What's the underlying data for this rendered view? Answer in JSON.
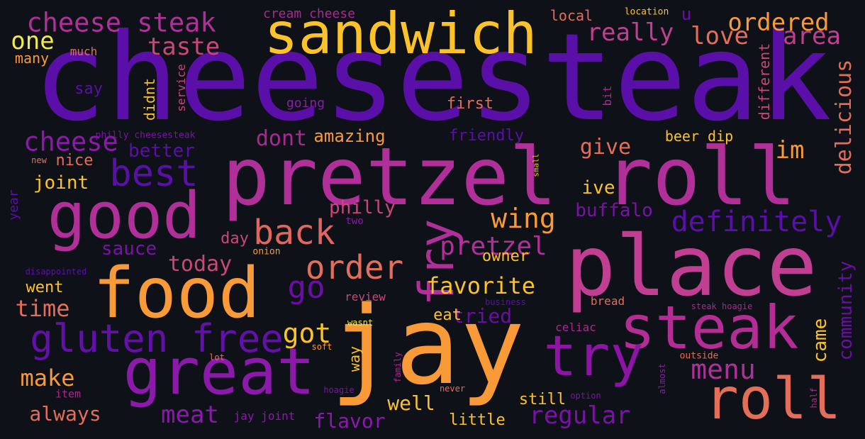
{
  "palette": {
    "background": "#0e1117",
    "deep_purple": "#5a0fa8",
    "purple": "#8b1aab",
    "magenta": "#c13f92",
    "pink": "#cb4778",
    "salmon": "#e36e5a",
    "orange": "#f79a3a",
    "yellow": "#fcc229",
    "pale_yellow": "#f2e94a"
  },
  "words": [
    {
      "text": "cheesesteak",
      "color": "#5a0fa8"
    },
    {
      "text": "pretzel roll",
      "color": "#b02f98"
    },
    {
      "text": "place",
      "color": "#c13f92"
    },
    {
      "text": "jay",
      "color": "#f99a39"
    },
    {
      "text": "food",
      "color": "#f99a39"
    },
    {
      "text": "good",
      "color": "#b02f98"
    },
    {
      "text": "great",
      "color": "#8b1aab"
    },
    {
      "text": "sandwich",
      "color": "#fcc229"
    },
    {
      "text": "steak",
      "color": "#b32d94"
    },
    {
      "text": "roll",
      "color": "#e36e5a"
    },
    {
      "text": "try",
      "color": "#8e14a6"
    },
    {
      "text": "fry",
      "color": "#b02f98"
    },
    {
      "text": "gluten free",
      "color": "#6210a8"
    },
    {
      "text": "best",
      "color": "#5a0fa8"
    },
    {
      "text": "back",
      "color": "#e0675f"
    },
    {
      "text": "order",
      "color": "#e36e5a"
    },
    {
      "text": "definitely",
      "color": "#5a0fa8"
    },
    {
      "text": "cheese steak",
      "color": "#b02f98"
    },
    {
      "text": "cheese",
      "color": "#8b1aab"
    },
    {
      "text": "taste",
      "color": "#cb4778"
    },
    {
      "text": "one",
      "color": "#f2e94a"
    },
    {
      "text": "really",
      "color": "#c13f92"
    },
    {
      "text": "ordered",
      "color": "#f99a39"
    },
    {
      "text": "love",
      "color": "#e36e5a"
    },
    {
      "text": "area",
      "color": "#c13f92"
    },
    {
      "text": "delicious",
      "color": "#e36e5a"
    },
    {
      "text": "go",
      "color": "#6a0ea6"
    },
    {
      "text": "got",
      "color": "#fcc229"
    },
    {
      "text": "menu",
      "color": "#b02f98"
    },
    {
      "text": "came",
      "color": "#fcc229"
    },
    {
      "text": "community",
      "color": "#6a0ea6"
    },
    {
      "text": "wing",
      "color": "#f99a39"
    },
    {
      "text": "pretzel",
      "color": "#b02f98"
    },
    {
      "text": "favorite",
      "color": "#fcc229"
    },
    {
      "text": "make",
      "color": "#f99a39"
    },
    {
      "text": "meat",
      "color": "#8b1aab"
    },
    {
      "text": "regular",
      "color": "#7a12a8"
    },
    {
      "text": "im",
      "color": "#f99a39"
    },
    {
      "text": "dont",
      "color": "#a9298e"
    },
    {
      "text": "give",
      "color": "#e36e5a"
    },
    {
      "text": "time",
      "color": "#e36e5a"
    },
    {
      "text": "today",
      "color": "#cb4778"
    },
    {
      "text": "always",
      "color": "#e36e5a"
    },
    {
      "text": "buffalo",
      "color": "#7a12a8"
    },
    {
      "text": "philly",
      "color": "#cb4778"
    },
    {
      "text": "sauce",
      "color": "#7a12a8"
    },
    {
      "text": "well",
      "color": "#fcc229"
    },
    {
      "text": "flavor",
      "color": "#8b1aab"
    },
    {
      "text": "better",
      "color": "#5a0fa8"
    },
    {
      "text": "joint",
      "color": "#fcc229"
    },
    {
      "text": "amazing",
      "color": "#f99a39"
    },
    {
      "text": "ive",
      "color": "#fcc229"
    },
    {
      "text": "tried",
      "color": "#6a0ea6"
    },
    {
      "text": "owner",
      "color": "#fcc229"
    },
    {
      "text": "eat",
      "color": "#fcc229"
    },
    {
      "text": "little",
      "color": "#fcc229"
    },
    {
      "text": "still",
      "color": "#fcc229"
    },
    {
      "text": "day",
      "color": "#cb4778"
    },
    {
      "text": "went",
      "color": "#fcc229"
    },
    {
      "text": "first",
      "color": "#e36e5a"
    },
    {
      "text": "friendly",
      "color": "#5a0fa8"
    },
    {
      "text": "beer dip",
      "color": "#fcc229"
    },
    {
      "text": "didnt",
      "color": "#fcc229"
    },
    {
      "text": "different",
      "color": "#cb4778"
    },
    {
      "text": "say",
      "color": "#5a0fa8"
    },
    {
      "text": "nice",
      "color": "#e36e5a"
    },
    {
      "text": "year",
      "color": "#5a0fa8"
    },
    {
      "text": "way",
      "color": "#fcc229"
    },
    {
      "text": "many",
      "color": "#f99a39"
    },
    {
      "text": "much",
      "color": "#e36e5a"
    },
    {
      "text": "cream cheese",
      "color": "#a9298e"
    },
    {
      "text": "local",
      "color": "#e36e5a"
    },
    {
      "text": "location",
      "color": "#fcc229"
    },
    {
      "text": "u",
      "color": "#6a0ea6"
    },
    {
      "text": "service",
      "color": "#cb4778"
    },
    {
      "text": "going",
      "color": "#8b1aab"
    },
    {
      "text": "bit",
      "color": "#a9298e"
    },
    {
      "text": "philly cheesesteak",
      "color": "#7a12a8"
    },
    {
      "text": "new",
      "color": "#e36e5a"
    },
    {
      "text": "small",
      "color": "#fcc229"
    },
    {
      "text": "two",
      "color": "#8b1aab"
    },
    {
      "text": "onion",
      "color": "#f99a39"
    },
    {
      "text": "disappointed",
      "color": "#5a0fa8"
    },
    {
      "text": "review",
      "color": "#cb4778"
    },
    {
      "text": "business",
      "color": "#5a0fa8"
    },
    {
      "text": "bread",
      "color": "#e36e5a"
    },
    {
      "text": "steak hoagie",
      "color": "#a9298e"
    },
    {
      "text": "celiac",
      "color": "#a9298e"
    },
    {
      "text": "wasnt",
      "color": "#f2e94a"
    },
    {
      "text": "soft",
      "color": "#f99a39"
    },
    {
      "text": "lot",
      "color": "#e36e5a"
    },
    {
      "text": "family",
      "color": "#a9298e"
    },
    {
      "text": "almost",
      "color": "#8b1aab"
    },
    {
      "text": "outside",
      "color": "#e36e5a"
    },
    {
      "text": "item",
      "color": "#a9298e"
    },
    {
      "text": "jay joint",
      "color": "#8b1aab"
    },
    {
      "text": "hoagie",
      "color": "#7a12a8"
    },
    {
      "text": "never",
      "color": "#e36e5a"
    },
    {
      "text": "option",
      "color": "#7a12a8"
    },
    {
      "text": "half",
      "color": "#a9298e"
    }
  ]
}
